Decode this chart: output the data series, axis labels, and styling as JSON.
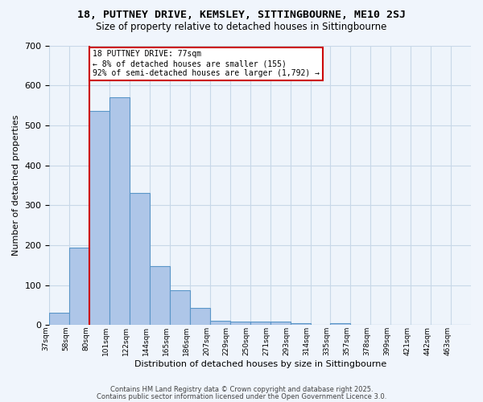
{
  "title1": "18, PUTTNEY DRIVE, KEMSLEY, SITTINGBOURNE, ME10 2SJ",
  "title2": "Size of property relative to detached houses in Sittingbourne",
  "xlabel": "Distribution of detached houses by size in Sittingbourne",
  "ylabel": "Number of detached properties",
  "bin_labels": [
    "37sqm",
    "58sqm",
    "80sqm",
    "101sqm",
    "122sqm",
    "144sqm",
    "165sqm",
    "186sqm",
    "207sqm",
    "229sqm",
    "250sqm",
    "271sqm",
    "293sqm",
    "314sqm",
    "335sqm",
    "357sqm",
    "378sqm",
    "399sqm",
    "421sqm",
    "442sqm",
    "463sqm"
  ],
  "bar_heights": [
    30,
    193,
    535,
    570,
    330,
    148,
    87,
    42,
    11,
    9,
    9,
    9,
    5,
    0,
    5,
    0,
    0,
    0,
    0,
    0,
    0
  ],
  "bar_color": "#aec6e8",
  "bar_edge_color": "#5a96c8",
  "bar_edge_width": 0.8,
  "grid_color": "#c8d8e8",
  "bg_color": "#eef4fb",
  "fig_color": "#f0f5fc",
  "red_line_x": 2.0,
  "red_line_color": "#cc0000",
  "annotation_text": "18 PUTTNEY DRIVE: 77sqm\n← 8% of detached houses are smaller (155)\n92% of semi-detached houses are larger (1,792) →",
  "annotation_box_color": "#ffffff",
  "annotation_box_edge": "#cc0000",
  "ylim": [
    0,
    700
  ],
  "yticks": [
    0,
    100,
    200,
    300,
    400,
    500,
    600,
    700
  ],
  "footer1": "Contains HM Land Registry data © Crown copyright and database right 2025.",
  "footer2": "Contains public sector information licensed under the Open Government Licence 3.0."
}
